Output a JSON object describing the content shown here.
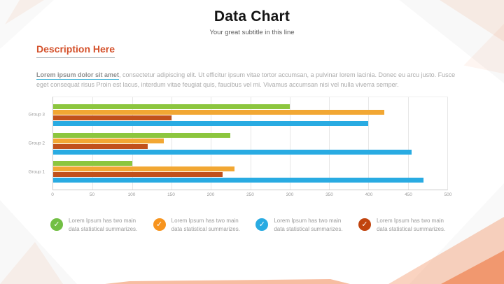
{
  "slide": {
    "title": "Data Chart",
    "subtitle": "Your great subtitle in this line"
  },
  "section": {
    "heading": "Description Here",
    "lead": "Lorem ipsum dolor sit amet",
    "body": ", consectetur adipiscing elit. Ut efficitur ipsum vitae tortor accumsan, a pulvinar lorem lacinia. Donec eu arcu justo. Fusce eget consequat risus Proin est lacus, interdum vitae feugiat quis, faucibus vel mi.  Vivamus accumsan nisi vel nulla viverra semper."
  },
  "chart_data": {
    "type": "bar",
    "orientation": "horizontal",
    "title": "Data Chart",
    "categories": [
      "Group 3",
      "Group 2",
      "Group 1"
    ],
    "series": [
      {
        "name": "green",
        "color": "#8CC63E",
        "values": [
          300,
          225,
          100
        ]
      },
      {
        "name": "orange",
        "color": "#F2A733",
        "values": [
          420,
          140,
          230
        ]
      },
      {
        "name": "red",
        "color": "#C1511B",
        "values": [
          150,
          120,
          215
        ]
      },
      {
        "name": "blue",
        "color": "#29ABE2",
        "values": [
          400,
          455,
          470
        ]
      }
    ],
    "xlim": [
      0,
      500
    ],
    "xticks": [
      0,
      50,
      100,
      150,
      200,
      250,
      300,
      350,
      400,
      450,
      500
    ],
    "grid": true,
    "legend_position": "bottom"
  },
  "legend": {
    "check_glyph": "✓",
    "items": [
      {
        "icon": "check-circle-icon",
        "color": "#72BF44",
        "text": "Lorem Ipsum has two main data statistical summarizes."
      },
      {
        "icon": "check-circle-icon",
        "color": "#F7941E",
        "text": "Lorem Ipsum has two main data statistical summarizes."
      },
      {
        "icon": "check-circle-icon",
        "color": "#29ABE2",
        "text": "Lorem Ipsum has two main data statistical summarizes."
      },
      {
        "icon": "check-circle-icon",
        "color": "#C1440E",
        "text": "Lorem Ipsum has two main data statistical summarizes."
      }
    ]
  },
  "colors": {
    "accent_orange": "#ED6C2F",
    "heading": "#D4512B",
    "lead_underline": "#45B5D8",
    "axis_text": "#9A9A9A"
  }
}
